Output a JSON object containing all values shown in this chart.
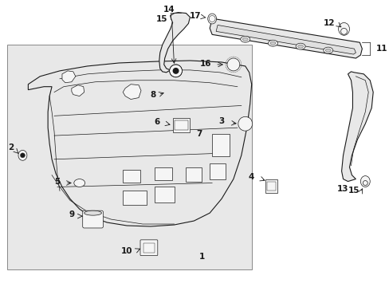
{
  "background_color": "#ffffff",
  "fig_width": 4.89,
  "fig_height": 3.6,
  "dpi": 100,
  "line_color": "#1a1a1a",
  "panel_fill": "#e8e8e8",
  "component_fill": "#f5f5f5",
  "box_fill": "#e0e0e0",
  "font_size": 7.5,
  "lw_main": 0.8,
  "lw_thin": 0.5
}
